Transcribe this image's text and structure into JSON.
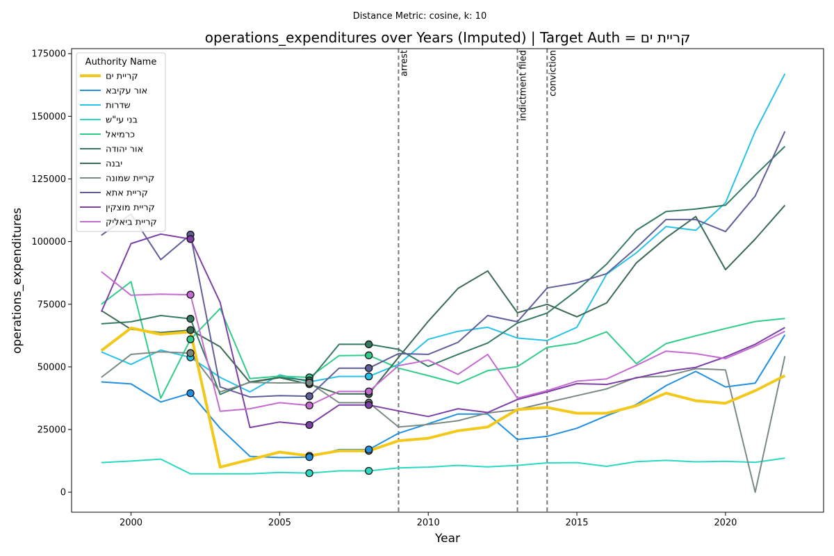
{
  "chart_data": {
    "type": "line",
    "suptitle": "Distance Metric: cosine, k: 10",
    "title": "operations_expenditures over Years (Imputed) | Target Auth = קריית ים",
    "xlabel": "Year",
    "ylabel": "operations_expenditures",
    "xlim": [
      1998,
      2023.3
    ],
    "ylim": [
      -8000,
      177000
    ],
    "xticks": [
      2000,
      2005,
      2010,
      2015,
      2020
    ],
    "yticks": [
      0,
      25000,
      50000,
      75000,
      100000,
      125000,
      150000,
      175000
    ],
    "ytick_labels": [
      "0",
      "25000",
      "50000",
      "75000",
      "100000",
      "125000",
      "150000",
      "175000"
    ],
    "legend": {
      "title": "Authority Name",
      "position": "upper-left"
    },
    "events": [
      {
        "x": 2009,
        "label": "arrest"
      },
      {
        "x": 2013,
        "label": "indictment filed"
      },
      {
        "x": 2014,
        "label": "conviction"
      }
    ],
    "x": [
      1999,
      2000,
      2001,
      2002,
      2003,
      2004,
      2005,
      2006,
      2007,
      2008,
      2009,
      2010,
      2011,
      2012,
      2013,
      2014,
      2015,
      2016,
      2017,
      2018,
      2019,
      2020,
      2021,
      2022
    ],
    "series": [
      {
        "name": "קריית ים",
        "color": "#f2c81b",
        "width": 4,
        "imputed_years": [
          2006,
          2008
        ],
        "values": [
          56500,
          65500,
          63000,
          64000,
          10000,
          13000,
          16000,
          14500,
          16500,
          16500,
          20500,
          21500,
          24500,
          26000,
          33000,
          33800,
          31500,
          31500,
          34500,
          39500,
          36500,
          35500,
          40500,
          46500
        ]
      },
      {
        "name": "אור עקיבא",
        "color": "#1f8fe0",
        "width": 2,
        "imputed_years": [
          2002,
          2006,
          2008
        ],
        "values": [
          44000,
          43200,
          36000,
          39500,
          25500,
          14300,
          13800,
          14000,
          17000,
          17000,
          23500,
          27300,
          31200,
          31200,
          21000,
          22300,
          25500,
          30500,
          35000,
          42500,
          48200,
          42000,
          43500,
          62800
        ]
      },
      {
        "name": "שדרות",
        "color": "#27c2e8",
        "width": 2,
        "imputed_years": [
          2002,
          2008
        ],
        "values": [
          56000,
          51000,
          56700,
          53800,
          45800,
          40000,
          46800,
          44000,
          46200,
          46200,
          51000,
          61000,
          64200,
          65800,
          61500,
          60500,
          65800,
          87000,
          95500,
          106000,
          104500,
          115500,
          144000,
          167000
        ]
      },
      {
        "name": "בני עי\"ש",
        "color": "#2ad9c2",
        "width": 2,
        "imputed_years": [
          2006,
          2008
        ],
        "values": [
          11800,
          12400,
          13200,
          7300,
          7300,
          7300,
          7900,
          7600,
          8500,
          8500,
          9700,
          10000,
          10700,
          10100,
          10700,
          11700,
          11800,
          10300,
          12200,
          12700,
          12100,
          12300,
          11900,
          13600
        ]
      },
      {
        "name": "כרמיאל",
        "color": "#2fcc8a",
        "width": 2,
        "imputed_years": [
          2002,
          2006,
          2008
        ],
        "values": [
          75000,
          84000,
          37500,
          61000,
          73300,
          45300,
          46300,
          45800,
          54500,
          54600,
          49500,
          46500,
          43300,
          48500,
          50100,
          57800,
          59500,
          64000,
          51300,
          59300,
          62400,
          65300,
          68100,
          69300
        ]
      },
      {
        "name": "אור יהודה",
        "color": "#347a62",
        "width": 2,
        "imputed_years": [
          2002,
          2006,
          2008
        ],
        "values": [
          67200,
          68000,
          70500,
          69200,
          39000,
          44000,
          45800,
          44600,
          59000,
          59000,
          57000,
          50200,
          55000,
          59500,
          67500,
          71500,
          80500,
          91000,
          104500,
          112000,
          113000,
          114500,
          126500,
          138000
        ]
      },
      {
        "name": "יבנה",
        "color": "#3a6a52",
        "width": 2,
        "imputed_years": [
          2002,
          2006,
          2008
        ],
        "values": [
          72500,
          65000,
          63700,
          64700,
          58000,
          43800,
          45700,
          43100,
          39200,
          39200,
          53800,
          68200,
          81300,
          88300,
          71600,
          75000,
          70000,
          75500,
          91500,
          101500,
          110000,
          88800,
          101000,
          114500
        ]
      },
      {
        "name": "קריית שמונה",
        "color": "#7a8a82",
        "width": 2,
        "imputed_years": [
          2002,
          2006,
          2008
        ],
        "values": [
          45800,
          55000,
          56000,
          55500,
          40000,
          43800,
          43600,
          43700,
          35700,
          35700,
          26000,
          27000,
          28500,
          31600,
          33000,
          35800,
          38500,
          41200,
          45800,
          46300,
          49300,
          48800,
          0,
          54300
        ]
      },
      {
        "name": "קריית אתא",
        "color": "#5e5e9a",
        "width": 2,
        "imputed_years": [
          2002,
          2006,
          2008
        ],
        "values": [
          102500,
          111000,
          92800,
          102800,
          42000,
          38000,
          38500,
          38300,
          49500,
          49500,
          55300,
          55000,
          59800,
          70500,
          68000,
          81500,
          83500,
          87200,
          97500,
          108800,
          108800,
          104000,
          118200,
          144000
        ]
      },
      {
        "name": "קריית מוצקין",
        "color": "#7b3fa6",
        "width": 2,
        "imputed_years": [
          2002,
          2006,
          2008
        ],
        "values": [
          72000,
          99200,
          103000,
          101000,
          75700,
          25800,
          28000,
          26800,
          34800,
          34800,
          32400,
          30200,
          33300,
          31800,
          37000,
          40000,
          43300,
          43000,
          45600,
          48200,
          49800,
          54000,
          59000,
          65700
        ]
      },
      {
        "name": "קריית ביאליק",
        "color": "#c46ad0",
        "width": 2,
        "imputed_years": [
          2002,
          2006,
          2008
        ],
        "values": [
          88000,
          78600,
          79000,
          78800,
          32300,
          33300,
          35700,
          34600,
          40200,
          40200,
          50500,
          52700,
          47000,
          55000,
          37500,
          40500,
          44300,
          45200,
          50600,
          56300,
          55300,
          53300,
          58300,
          64200
        ]
      }
    ]
  }
}
